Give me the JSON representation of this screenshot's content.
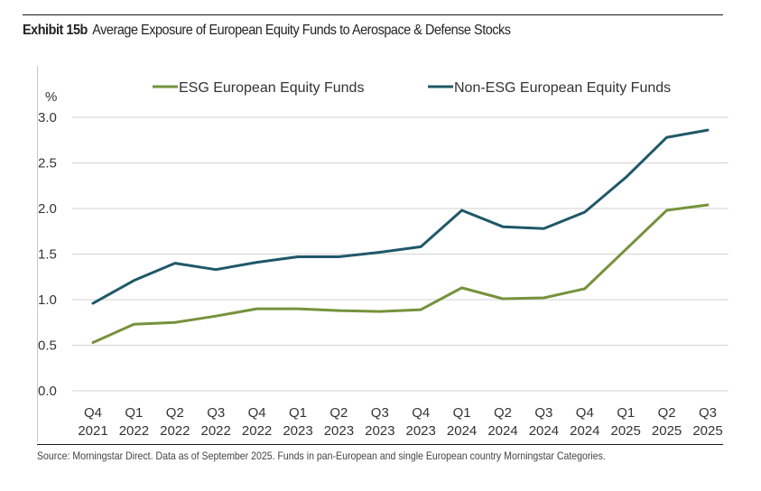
{
  "header": {
    "exhibit_label": "Exhibit 15b",
    "title": "Average Exposure of European Equity Funds to Aerospace & Defense Stocks"
  },
  "footer": {
    "source": "Source: Morningstar Direct. Data as of September 2025. Funds in pan-European and single European country Morningstar Categories."
  },
  "chart_data": {
    "type": "line",
    "title": "Average Exposure of European Equity Funds to Aerospace & Defense Stocks",
    "xlabel": "",
    "ylabel": "%",
    "ylim": [
      0,
      3.0
    ],
    "yticks": [
      "0.0",
      "0.5",
      "1.0",
      "1.5",
      "2.0",
      "2.5",
      "3.0"
    ],
    "ytick_values": [
      0,
      0.5,
      1.0,
      1.5,
      2.0,
      2.5,
      3.0
    ],
    "grid": true,
    "legend_position": "top",
    "categories": [
      [
        "Q4",
        "2021"
      ],
      [
        "Q1",
        "2022"
      ],
      [
        "Q2",
        "2022"
      ],
      [
        "Q3",
        "2022"
      ],
      [
        "Q4",
        "2022"
      ],
      [
        "Q1",
        "2023"
      ],
      [
        "Q2",
        "2023"
      ],
      [
        "Q3",
        "2023"
      ],
      [
        "Q4",
        "2023"
      ],
      [
        "Q1",
        "2024"
      ],
      [
        "Q2",
        "2024"
      ],
      [
        "Q3",
        "2024"
      ],
      [
        "Q4",
        "2024"
      ],
      [
        "Q1",
        "2025"
      ],
      [
        "Q2",
        "2025"
      ],
      [
        "Q3",
        "2025"
      ]
    ],
    "series": [
      {
        "name": "ESG European Equity Funds",
        "color": "#76923c",
        "values": [
          0.53,
          0.73,
          0.75,
          0.82,
          0.9,
          0.9,
          0.88,
          0.87,
          0.89,
          1.13,
          1.01,
          1.02,
          1.12,
          1.55,
          1.98,
          2.04
        ]
      },
      {
        "name": "Non-ESG European Equity Funds",
        "color": "#1f5868",
        "values": [
          0.96,
          1.21,
          1.4,
          1.33,
          1.41,
          1.47,
          1.47,
          1.52,
          1.58,
          1.98,
          1.8,
          1.78,
          1.96,
          2.34,
          2.78,
          2.86
        ]
      }
    ]
  }
}
